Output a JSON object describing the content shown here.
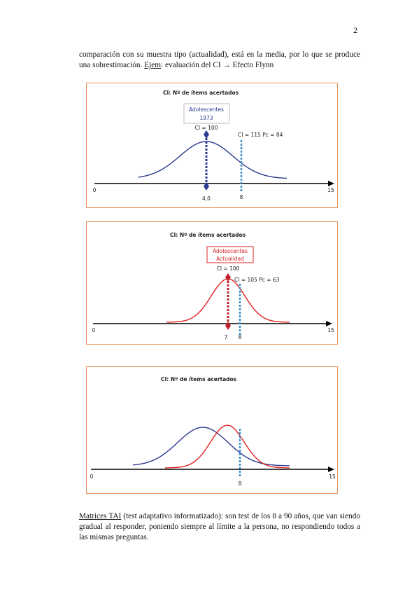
{
  "page_number": "2",
  "paragraph1": {
    "text_before": "comparación con su muestra tipo (actualidad), está en la media, por lo que se produce una sobrestimación.",
    "underlined": "Ejem",
    "text_after": ": evaluación del CI → Efecto Flynn"
  },
  "figures": [
    {
      "title": "CI: Nº de ítems acertados",
      "group_box": [
        "Adolescentes",
        "1973"
      ],
      "mean_label": "CI = 100",
      "score_label": "CI = 115  Pc = 84",
      "axis_start": "0",
      "axis_end": "15",
      "mean_tick": "4,0",
      "score_tick": "8"
    },
    {
      "title": "CI: Nº de ítems acertados",
      "group_box": [
        "Adolescentes",
        "Actualidad"
      ],
      "mean_label": "CI = 100",
      "score_label": "CI = 105  Pc = 63",
      "axis_start": "0",
      "axis_end": "15",
      "mean_tick": "7",
      "score_tick": "8"
    },
    {
      "title": "CI: Nº de ítems acertados",
      "axis_start": "0",
      "axis_end": "15",
      "score_tick": "8"
    }
  ],
  "paragraph2": {
    "underlined": "Matrices TAI",
    "text": " (test adaptativo informatizado): son test de los 8 a 90 años, que van siendo gradual al responder, poniendo siempre al límite a la persona, no respondiendo todos a las mismas preguntas."
  }
}
